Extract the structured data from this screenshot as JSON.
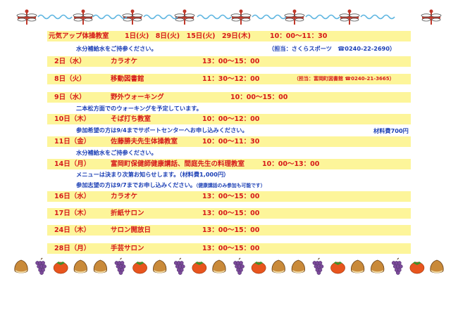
{
  "rows": [
    {
      "date": "元気アップ体操教室",
      "event": "1日(火)　8日(火)　15日(火)　29日(木)",
      "time": "10：00～11：30"
    },
    {
      "date": "2日（水）",
      "event": "カラオケ",
      "time": "13：00～15：00"
    },
    {
      "date": "8日（火）",
      "event": "移動図書館",
      "time": "11：30～12：00",
      "contact": "（担当：富岡町図書館 ☎0240-21-3665）"
    },
    {
      "date": "9日（水）",
      "event": "野外ウォーキング",
      "time": "10：00～15：00"
    },
    {
      "date": "10日（木）",
      "event": "そば打ち教室",
      "time": "10：00～12：00"
    },
    {
      "date": "11日（金）",
      "event": "佐藤勝夫先生体操教室",
      "time": "10：00～11：30"
    },
    {
      "date": "14日（月）",
      "event": "富岡町保健師健康講話、間庭先生の料理教室",
      "time": "10：00～13：00"
    },
    {
      "date": "16日（水）",
      "event": "カラオケ",
      "time": "13：00～15：00"
    },
    {
      "date": "17日（木）",
      "event": "折紙サロン",
      "time": "13：00～15：00"
    },
    {
      "date": "24日（木）",
      "event": "サロン開放日",
      "time": "13：00～15：00"
    },
    {
      "date": "28日（月）",
      "event": "手芸サロン",
      "time": "13：00～15：00"
    }
  ],
  "notes": {
    "taisou": "水分補給水をご持参ください。",
    "taisou_contact": "（担当：さくらスポーツ　☎0240-22-2690）",
    "walking": "二本松方面でのウォーキングを予定しています。",
    "soba": "参加希望の方は9/4までサポートセンターへお申し込みください。",
    "soba_fee": "材料費700円",
    "sato": "水分補給水をご持参ください。",
    "menu": "メニューは決まり次第お知らせします。（材料費1,000円）",
    "apply": "参加志望の方は9/7までお申し込みください。",
    "apply_small": "（健康講話のみ参加も可能です）"
  },
  "colors": {
    "row_bg": "#fdf59a",
    "red": "#d61a1a",
    "blue": "#1b3fb5"
  },
  "decorations": {
    "top": "dragonfly-and-wave-border",
    "bottom": "autumn-fruit-border"
  }
}
